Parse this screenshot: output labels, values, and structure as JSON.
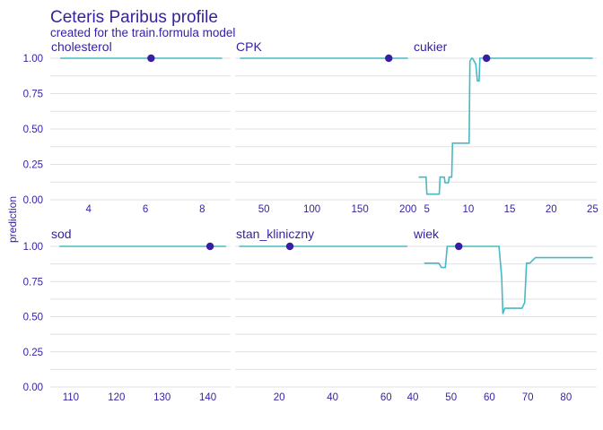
{
  "chart_data": {
    "type": "line",
    "title": "Ceteris Paribus profile",
    "subtitle": "created for the train.formula model",
    "ylabel": "prediction",
    "ylim": [
      0,
      1.05
    ],
    "y_ticks": [
      0,
      0.25,
      0.5,
      0.75,
      1
    ],
    "y_tick_labels": [
      "0.00",
      "0.25",
      "0.50",
      "0.75",
      "1.00"
    ],
    "grid": true,
    "line_color": "#46bac2",
    "point_color": "#371ea3",
    "text_color": "#371ea3",
    "panels": [
      {
        "name": "cholesterol",
        "xlim": [
          2.65,
          9.0
        ],
        "x_ticks": [
          4,
          6,
          8
        ],
        "x_tick_labels": [
          "4",
          "6",
          "8"
        ],
        "profile": {
          "x": [
            3.0,
            8.7
          ],
          "y": [
            1.0,
            1.0
          ]
        },
        "observation": {
          "x": 6.2,
          "y": 1.0
        }
      },
      {
        "name": "CPK",
        "xlim": [
          20,
          205
        ],
        "x_ticks": [
          50,
          100,
          150,
          200
        ],
        "x_tick_labels": [
          "50",
          "100",
          "150",
          "200"
        ],
        "profile": {
          "x": [
            25,
            200
          ],
          "y": [
            1.0,
            1.0
          ]
        },
        "observation": {
          "x": 180,
          "y": 1.0
        }
      },
      {
        "name": "cukier",
        "xlim": [
          3.3,
          25.5
        ],
        "x_ticks": [
          5,
          10,
          15,
          20,
          25
        ],
        "x_tick_labels": [
          "5",
          "10",
          "15",
          "20",
          "25"
        ],
        "profile": {
          "x": [
            4.0,
            4.9,
            5.0,
            6.5,
            6.6,
            7.1,
            7.2,
            7.6,
            7.7,
            8.0,
            8.1,
            10.1,
            10.2,
            10.4,
            10.5,
            10.9,
            11.1,
            11.3,
            11.4,
            11.6,
            11.7,
            25.0
          ],
          "y": [
            0.16,
            0.16,
            0.04,
            0.04,
            0.16,
            0.16,
            0.12,
            0.12,
            0.16,
            0.16,
            0.4,
            0.4,
            0.98,
            1.0,
            1.0,
            0.96,
            0.84,
            0.84,
            1.0,
            1.0,
            1.0,
            1.0
          ]
        },
        "observation": {
          "x": 12.2,
          "y": 1.0
        }
      },
      {
        "name": "sod",
        "xlim": [
          105.5,
          145
        ],
        "x_ticks": [
          110,
          120,
          130,
          140
        ],
        "x_tick_labels": [
          "110",
          "120",
          "130",
          "140"
        ],
        "profile": {
          "x": [
            107.5,
            144
          ],
          "y": [
            1.0,
            1.0
          ]
        },
        "observation": {
          "x": 140.5,
          "y": 1.0
        }
      },
      {
        "name": "stan_kliniczny",
        "xlim": [
          3.5,
          70
        ],
        "x_ticks": [
          20,
          40,
          60
        ],
        "x_tick_labels": [
          "20",
          "40",
          "60"
        ],
        "profile": {
          "x": [
            5,
            68
          ],
          "y": [
            1.0,
            1.0
          ]
        },
        "observation": {
          "x": 24,
          "y": 1.0
        }
      },
      {
        "name": "wiek",
        "xlim": [
          40,
          88
        ],
        "x_ticks": [
          40,
          50,
          60,
          70,
          80
        ],
        "x_tick_labels": [
          "40",
          "50",
          "60",
          "70",
          "80"
        ],
        "profile": {
          "x": [
            43,
            46.8,
            47.5,
            48.5,
            49,
            62.5,
            63.2,
            63.5,
            64,
            65,
            68.5,
            69.2,
            69.7,
            70.5,
            72,
            87
          ],
          "y": [
            0.88,
            0.88,
            0.85,
            0.85,
            1.0,
            1.0,
            0.78,
            0.52,
            0.56,
            0.56,
            0.56,
            0.6,
            0.88,
            0.88,
            0.92,
            0.92
          ]
        },
        "observation": {
          "x": 52,
          "y": 1.0
        }
      }
    ]
  }
}
